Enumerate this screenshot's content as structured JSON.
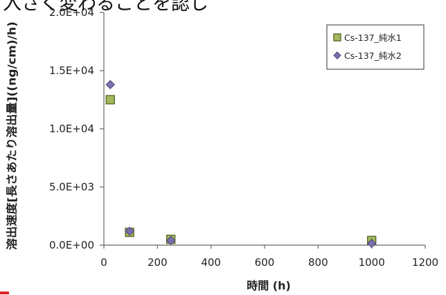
{
  "cut_off_text": "入さく変わることを認し",
  "chart_data": {
    "type": "scatter",
    "xlabel": "時間 (h)",
    "ylabel": "溶出速度[長さあたり溶出量]((ng/cm)/h)",
    "xlim": [
      0,
      1200
    ],
    "ylim": [
      0,
      20000
    ],
    "x_ticks": [
      "0",
      "200",
      "400",
      "600",
      "800",
      "1000",
      "1200"
    ],
    "y_ticks": [
      "0.0E+00",
      "5.0E+03",
      "1.0E+04",
      "1.5E+04",
      "2.0E+04"
    ],
    "grid": false,
    "legend_position": "top-right",
    "series": [
      {
        "name": "Cs-137_純水1",
        "marker": "square",
        "color": "#a3b85a",
        "edge_color": "#5a6a2e",
        "points": [
          {
            "x": 24,
            "y": 12500
          },
          {
            "x": 96,
            "y": 1100
          },
          {
            "x": 250,
            "y": 500
          },
          {
            "x": 1000,
            "y": 400
          }
        ]
      },
      {
        "name": "Cs-137_純水2",
        "marker": "diamond",
        "color": "#7b6fae",
        "edge_color": "#4e4680",
        "points": [
          {
            "x": 24,
            "y": 13800
          },
          {
            "x": 96,
            "y": 1200
          },
          {
            "x": 250,
            "y": 400
          },
          {
            "x": 1000,
            "y": 150
          }
        ]
      }
    ]
  }
}
